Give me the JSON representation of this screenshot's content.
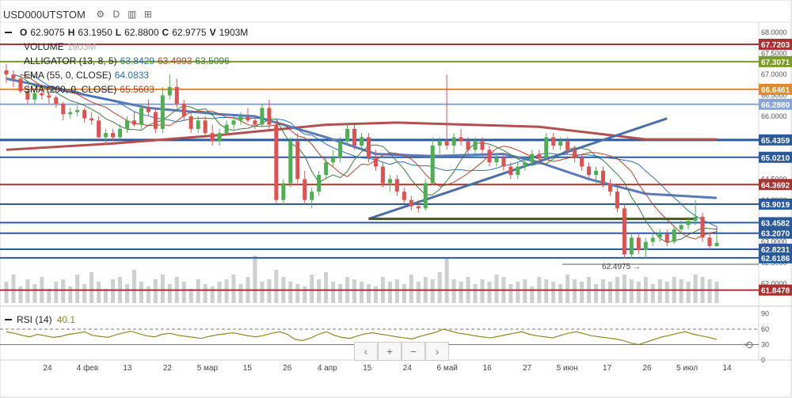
{
  "header": {
    "symbol": "USD000UTSTOM",
    "settings_icon": "gear-icon",
    "interval": "D",
    "indicators_icon": "bar-chart-icon",
    "compare_icon": "add-compare-icon"
  },
  "ohlc": {
    "o_label": "O",
    "o": "62.9075",
    "h_label": "H",
    "h": "63.1950",
    "l_label": "L",
    "l": "62.8800",
    "c_label": "C",
    "c": "62.9775",
    "v_label": "V",
    "v": "1903M"
  },
  "indicators": {
    "volume": {
      "label": "VOLUME",
      "value": "1903M",
      "color": "#b0b0b0"
    },
    "alligator": {
      "label": "ALLIGATOR (13, 8, 5)",
      "v1": "63.8429",
      "v2": "63.4993",
      "v3": "63.5096",
      "c1": "#2a6fb5",
      "c2": "#b5442a",
      "c3": "#3a7a3a"
    },
    "ema": {
      "label": "EMA (55, 0, CLOSE)",
      "value": "64.0833",
      "color": "#2a6fb5"
    },
    "sma": {
      "label": "SMA (200, 0, CLOSE)",
      "value": "65.5603",
      "color": "#b5442a"
    },
    "rsi": {
      "label": "RSI (14)",
      "value": "40.1",
      "color": "#8a8a2a"
    }
  },
  "navigation": {
    "left": "‹",
    "zoom_in": "+",
    "zoom_out": "−",
    "right": "›",
    "reset": "⟲"
  },
  "chart_data": {
    "type": "candlestick",
    "price_axis": {
      "ylim": [
        61.5,
        68.25
      ],
      "ticks": [
        "68.0000",
        "67.5000",
        "67.0000",
        "66.5000",
        "66.0000",
        "65.5000",
        "65.0000",
        "64.5000",
        "64.0000",
        "63.5000",
        "63.0000",
        "62.5000",
        "62.0000"
      ]
    },
    "rsi_axis": {
      "ylim": [
        0,
        100
      ],
      "ticks": [
        "90",
        "60",
        "30",
        "0"
      ],
      "levels": [
        60,
        40
      ]
    },
    "x_labels": [
      "24",
      "4 фев",
      "13",
      "22",
      "5 мар",
      "15",
      "26",
      "4 апр",
      "15",
      "24",
      "6 май",
      "16",
      "27",
      "5 июн",
      "17",
      "26",
      "5 июл",
      "14"
    ],
    "horizontal_levels": [
      {
        "value": 67.7203,
        "label": "67.7203",
        "color": "#a83232"
      },
      {
        "value": 67.3071,
        "label": "67.3071",
        "color": "#7a9a2a"
      },
      {
        "value": 66.6461,
        "label": "66.6461",
        "color": "#e08a2a"
      },
      {
        "value": 66.288,
        "label": "66.2880",
        "color": "#8aa4d4"
      },
      {
        "value": 65.4359,
        "label": "65.4359",
        "color": "#2a5a9a"
      },
      {
        "value": 65.021,
        "label": "65.0210",
        "color": "#2a5a9a"
      },
      {
        "value": 64.3692,
        "label": "64.3692",
        "color": "#a83232"
      },
      {
        "value": 63.9019,
        "label": "63.9019",
        "color": "#2a5a9a"
      },
      {
        "value": 63.4582,
        "label": "63.4582",
        "color": "#2a5a9a"
      },
      {
        "value": 63.207,
        "label": "63.2070",
        "color": "#2a5a9a"
      },
      {
        "value": 62.8231,
        "label": "62.8231",
        "color": "#2a5a9a"
      },
      {
        "value": 62.6186,
        "label": "62.6186",
        "color": "#2a5a9a"
      },
      {
        "value": 61.8478,
        "label": "61.8478",
        "color": "#a83232"
      }
    ],
    "annotation": {
      "label": "62.4975 →",
      "price": 62.4975
    },
    "up_color": "#4caf50",
    "down_color": "#e05050",
    "candles": [
      [
        67.1,
        67.25,
        66.8,
        67.0
      ],
      [
        67.0,
        67.1,
        66.7,
        66.9
      ],
      [
        66.9,
        67.0,
        66.55,
        66.6
      ],
      [
        66.6,
        66.7,
        66.3,
        66.4
      ],
      [
        66.4,
        66.65,
        66.3,
        66.55
      ],
      [
        66.55,
        66.7,
        66.4,
        66.5
      ],
      [
        66.5,
        66.6,
        66.3,
        66.45
      ],
      [
        66.45,
        66.5,
        66.2,
        66.3
      ],
      [
        66.3,
        66.35,
        65.9,
        66.05
      ],
      [
        66.05,
        66.2,
        65.95,
        66.1
      ],
      [
        66.1,
        66.25,
        66.0,
        66.15
      ],
      [
        66.15,
        66.2,
        65.85,
        65.95
      ],
      [
        65.95,
        66.1,
        65.8,
        65.9
      ],
      [
        65.9,
        66.0,
        65.4,
        65.5
      ],
      [
        65.5,
        65.7,
        65.35,
        65.6
      ],
      [
        65.6,
        65.7,
        65.4,
        65.5
      ],
      [
        65.5,
        65.8,
        65.45,
        65.7
      ],
      [
        65.7,
        66.0,
        65.6,
        65.9
      ],
      [
        65.9,
        66.1,
        65.75,
        65.8
      ],
      [
        65.8,
        66.3,
        65.7,
        66.2
      ],
      [
        66.2,
        66.4,
        66.0,
        66.1
      ],
      [
        66.1,
        66.2,
        65.6,
        65.7
      ],
      [
        65.7,
        66.7,
        65.6,
        66.5
      ],
      [
        66.5,
        67.0,
        66.4,
        66.7
      ],
      [
        66.7,
        66.9,
        66.2,
        66.3
      ],
      [
        66.3,
        66.4,
        65.9,
        66.0
      ],
      [
        66.0,
        66.1,
        65.6,
        65.7
      ],
      [
        65.7,
        66.0,
        65.6,
        65.9
      ],
      [
        65.9,
        66.0,
        65.55,
        65.6
      ],
      [
        65.6,
        65.8,
        65.3,
        65.4
      ],
      [
        65.4,
        65.7,
        65.3,
        65.6
      ],
      [
        65.6,
        65.9,
        65.55,
        65.8
      ],
      [
        65.8,
        66.0,
        65.7,
        65.9
      ],
      [
        65.9,
        66.1,
        65.8,
        66.0
      ],
      [
        66.0,
        66.2,
        65.85,
        65.9
      ],
      [
        65.9,
        66.0,
        65.7,
        65.8
      ],
      [
        65.8,
        66.3,
        65.75,
        66.2
      ],
      [
        66.2,
        66.4,
        65.7,
        65.8
      ],
      [
        65.8,
        65.9,
        63.9,
        64.0
      ],
      [
        64.0,
        64.5,
        63.9,
        64.4
      ],
      [
        64.4,
        65.5,
        64.3,
        65.4
      ],
      [
        65.4,
        65.6,
        64.4,
        64.5
      ],
      [
        64.5,
        64.7,
        63.9,
        64.0
      ],
      [
        64.0,
        64.3,
        63.8,
        64.2
      ],
      [
        64.2,
        64.7,
        64.1,
        64.6
      ],
      [
        64.6,
        65.0,
        64.5,
        64.9
      ],
      [
        64.9,
        65.2,
        64.8,
        65.0
      ],
      [
        65.0,
        65.5,
        64.9,
        65.4
      ],
      [
        65.4,
        65.8,
        65.3,
        65.7
      ],
      [
        65.7,
        65.8,
        65.2,
        65.3
      ],
      [
        65.3,
        65.6,
        65.2,
        65.5
      ],
      [
        65.5,
        65.6,
        64.9,
        65.0
      ],
      [
        65.0,
        65.2,
        64.7,
        64.8
      ],
      [
        64.8,
        64.9,
        64.3,
        64.4
      ],
      [
        64.4,
        64.6,
        64.2,
        64.5
      ],
      [
        64.5,
        64.6,
        64.1,
        64.2
      ],
      [
        64.2,
        64.3,
        63.9,
        64.0
      ],
      [
        64.0,
        64.1,
        63.75,
        63.85
      ],
      [
        63.85,
        64.0,
        63.7,
        63.8
      ],
      [
        63.8,
        64.5,
        63.75,
        64.4
      ],
      [
        64.4,
        65.5,
        64.35,
        65.3
      ],
      [
        65.3,
        65.5,
        65.1,
        65.4
      ],
      [
        65.4,
        67.0,
        65.2,
        65.3
      ],
      [
        65.3,
        65.6,
        65.1,
        65.5
      ],
      [
        65.5,
        65.7,
        65.3,
        65.4
      ],
      [
        65.4,
        65.5,
        65.1,
        65.2
      ],
      [
        65.2,
        65.5,
        65.0,
        65.4
      ],
      [
        65.4,
        65.5,
        65.1,
        65.2
      ],
      [
        65.2,
        65.3,
        64.8,
        64.9
      ],
      [
        64.9,
        65.1,
        64.8,
        65.0
      ],
      [
        65.0,
        65.1,
        64.7,
        64.8
      ],
      [
        64.8,
        64.9,
        64.5,
        64.6
      ],
      [
        64.6,
        64.9,
        64.5,
        64.8
      ],
      [
        64.8,
        65.0,
        64.7,
        64.9
      ],
      [
        64.9,
        65.2,
        64.8,
        65.1
      ],
      [
        65.1,
        65.2,
        64.9,
        65.0
      ],
      [
        65.0,
        65.6,
        64.95,
        65.5
      ],
      [
        65.5,
        65.6,
        65.2,
        65.3
      ],
      [
        65.3,
        65.5,
        65.2,
        65.4
      ],
      [
        65.4,
        65.5,
        65.1,
        65.2
      ],
      [
        65.2,
        65.3,
        64.9,
        65.0
      ],
      [
        65.0,
        65.1,
        64.7,
        64.8
      ],
      [
        64.8,
        64.9,
        64.5,
        64.6
      ],
      [
        64.6,
        64.8,
        64.4,
        64.7
      ],
      [
        64.7,
        64.8,
        64.3,
        64.4
      ],
      [
        64.4,
        64.5,
        64.1,
        64.2
      ],
      [
        64.2,
        64.3,
        63.7,
        63.8
      ],
      [
        63.8,
        63.9,
        62.6,
        62.7
      ],
      [
        62.7,
        63.2,
        62.6,
        63.1
      ],
      [
        63.1,
        63.2,
        62.7,
        62.8
      ],
      [
        62.8,
        63.1,
        62.6,
        63.0
      ],
      [
        63.0,
        63.2,
        62.9,
        63.1
      ],
      [
        63.1,
        63.3,
        63.0,
        63.2
      ],
      [
        63.2,
        63.3,
        62.9,
        63.0
      ],
      [
        63.0,
        63.4,
        62.95,
        63.3
      ],
      [
        63.3,
        63.5,
        63.2,
        63.4
      ],
      [
        63.4,
        63.6,
        63.3,
        63.5
      ],
      [
        63.5,
        64.0,
        63.4,
        63.6
      ],
      [
        63.6,
        63.7,
        63.0,
        63.1
      ],
      [
        63.1,
        63.2,
        62.8,
        62.9
      ],
      [
        62.9,
        63.2,
        62.88,
        62.98
      ]
    ],
    "volumes": [
      0.45,
      0.6,
      0.35,
      0.5,
      0.4,
      0.55,
      0.3,
      0.45,
      0.5,
      0.35,
      0.6,
      0.4,
      0.65,
      0.45,
      0.3,
      0.5,
      0.55,
      0.4,
      0.7,
      0.45,
      0.35,
      0.5,
      0.6,
      0.4,
      0.55,
      0.45,
      0.3,
      0.5,
      0.4,
      0.35,
      0.45,
      0.5,
      0.6,
      0.4,
      0.55,
      1.0,
      0.45,
      0.5,
      0.7,
      0.55,
      0.45,
      0.4,
      0.35,
      0.6,
      0.5,
      0.65,
      0.45,
      0.4,
      0.55,
      0.5,
      0.45,
      0.4,
      0.35,
      0.55,
      0.45,
      0.5,
      0.4,
      0.6,
      0.45,
      0.55,
      0.5,
      0.65,
      0.95,
      0.5,
      0.45,
      0.55,
      0.4,
      0.5,
      0.45,
      0.6,
      0.55,
      0.4,
      0.45,
      0.5,
      0.35,
      0.55,
      0.5,
      0.45,
      0.4,
      0.6,
      0.5,
      0.45,
      0.55,
      0.4,
      0.5,
      0.45,
      0.55,
      0.6,
      0.5,
      0.45,
      0.55,
      0.4,
      0.5,
      0.45,
      0.55,
      0.5,
      0.45,
      0.6,
      0.55,
      0.5,
      0.45
    ],
    "sma200": [
      [
        0,
        65.2
      ],
      [
        0.15,
        65.35
      ],
      [
        0.3,
        65.55
      ],
      [
        0.45,
        65.8
      ],
      [
        0.55,
        65.85
      ],
      [
        0.65,
        65.8
      ],
      [
        0.75,
        65.75
      ],
      [
        0.85,
        65.55
      ],
      [
        0.9,
        65.45
      ],
      [
        1.0,
        65.45
      ]
    ],
    "ema55": [
      [
        0,
        66.9
      ],
      [
        0.1,
        66.55
      ],
      [
        0.2,
        66.2
      ],
      [
        0.3,
        66.05
      ],
      [
        0.35,
        66.0
      ],
      [
        0.45,
        65.5
      ],
      [
        0.52,
        65.1
      ],
      [
        0.6,
        65.05
      ],
      [
        0.7,
        65.1
      ],
      [
        0.75,
        64.9
      ],
      [
        0.82,
        64.5
      ],
      [
        0.9,
        64.15
      ],
      [
        1.0,
        64.05
      ]
    ],
    "trendlines": [
      {
        "points": [
          [
            0.51,
            63.55
          ],
          [
            0.93,
            65.95
          ]
        ],
        "color": "#4a6fa8"
      },
      {
        "points": [
          [
            0.51,
            63.55
          ],
          [
            0.97,
            63.55
          ]
        ],
        "color": "#4a5a10"
      }
    ],
    "rsi": [
      55,
      52,
      48,
      45,
      50,
      47,
      44,
      46,
      50,
      52,
      55,
      48,
      46,
      44,
      49,
      53,
      56,
      51,
      47,
      45,
      50,
      52,
      48,
      46,
      44,
      42,
      46,
      49,
      51,
      53,
      50,
      47,
      45,
      48,
      52,
      55,
      50,
      40,
      38,
      43,
      50,
      55,
      48,
      44,
      42,
      47,
      51,
      53,
      50,
      48,
      45,
      43,
      41,
      46,
      50,
      54,
      60,
      56,
      52,
      50,
      47,
      45,
      43,
      46,
      49,
      52,
      55,
      50,
      47,
      45,
      43,
      48,
      52,
      55,
      51,
      47,
      45,
      43,
      41,
      38,
      33,
      30,
      35,
      40,
      45,
      48,
      52,
      55,
      50,
      47,
      44,
      40
    ]
  }
}
